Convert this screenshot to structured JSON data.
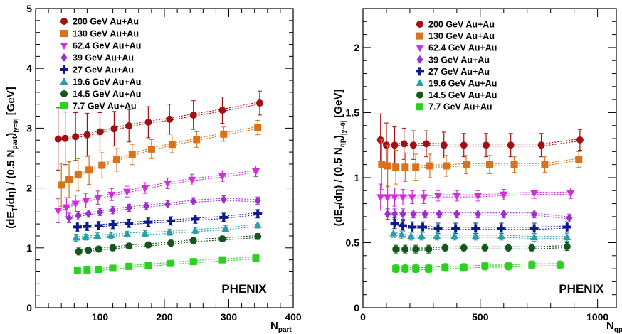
{
  "chart_data": [
    {
      "type": "scatter",
      "x_label": {
        "main": "N",
        "sub": "part"
      },
      "y_label": {
        "pre": "(dE",
        "s1": "T",
        "mid": "/dη) / (0.5 N",
        "s2": "part",
        "post": ")",
        "s3": "|y=0|",
        "unit": " [GeV]"
      },
      "x_ticks": [
        "100",
        "200",
        "300",
        "400"
      ],
      "y_ticks": [
        "0",
        "1",
        "2",
        "3",
        "4",
        "5"
      ],
      "xlim": [
        0,
        400
      ],
      "ylim": [
        0,
        5
      ],
      "watermark": "PHENIX",
      "legend_position": "top-left",
      "series": [
        {
          "name": "200 GeV Au+Au",
          "color": "#a30f12",
          "marker": "circle",
          "x": [
            35,
            46,
            62,
            80,
            100,
            122,
            145,
            175,
            208,
            245,
            290,
            348
          ],
          "y": [
            2.82,
            2.83,
            2.86,
            2.89,
            2.94,
            2.99,
            3.04,
            3.1,
            3.15,
            3.22,
            3.3,
            3.42
          ],
          "err": [
            0.52,
            0.44,
            0.4,
            0.36,
            0.32,
            0.29,
            0.27,
            0.26,
            0.25,
            0.24,
            0.22,
            0.2
          ]
        },
        {
          "name": "130 GeV Au+Au",
          "color": "#d97218",
          "marker": "square",
          "x": [
            40,
            52,
            66,
            83,
            103,
            126,
            150,
            180,
            212,
            250,
            292,
            345
          ],
          "y": [
            2.05,
            2.14,
            2.22,
            2.3,
            2.38,
            2.47,
            2.56,
            2.65,
            2.73,
            2.81,
            2.9,
            3.01
          ],
          "err": [
            0.36,
            0.3,
            0.27,
            0.24,
            0.21,
            0.19,
            0.17,
            0.16,
            0.14,
            0.13,
            0.12,
            0.12
          ]
        },
        {
          "name": "62.4 GeV Au+Au",
          "color": "#d02ed8",
          "marker": "triangle-down",
          "x": [
            35,
            48,
            62,
            78,
            97,
            118,
            142,
            170,
            205,
            243,
            290,
            342
          ],
          "y": [
            1.62,
            1.68,
            1.74,
            1.79,
            1.84,
            1.89,
            1.94,
            2.0,
            2.08,
            2.14,
            2.2,
            2.28
          ],
          "err": [
            0.2,
            0.16,
            0.14,
            0.12,
            0.11,
            0.1,
            0.09,
            0.09,
            0.09,
            0.09,
            0.09,
            0.09
          ]
        },
        {
          "name": "39 GeV Au+Au",
          "color": "#9b30c8",
          "marker": "diamond",
          "x": [
            52,
            66,
            82,
            100,
            120,
            145,
            172,
            205,
            245,
            292,
            345
          ],
          "y": [
            1.5,
            1.54,
            1.57,
            1.6,
            1.63,
            1.67,
            1.7,
            1.73,
            1.78,
            1.81,
            1.79
          ],
          "err": [
            0.08,
            0.07,
            0.06,
            0.06,
            0.06,
            0.06,
            0.06,
            0.06,
            0.06,
            0.06,
            0.06
          ]
        },
        {
          "name": "27 GeV Au+Au",
          "color": "#0c1a8a",
          "marker": "cross",
          "x": [
            65,
            80,
            98,
            120,
            145,
            175,
            210,
            248,
            292,
            345
          ],
          "y": [
            1.35,
            1.36,
            1.37,
            1.39,
            1.41,
            1.43,
            1.45,
            1.48,
            1.51,
            1.57
          ],
          "err": [
            0.08,
            0.07,
            0.07,
            0.07,
            0.07,
            0.07,
            0.07,
            0.07,
            0.07,
            0.07
          ]
        },
        {
          "name": "19.6 GeV Au+Au",
          "color": "#2a9da6",
          "marker": "triangle-up",
          "x": [
            63,
            78,
            96,
            117,
            142,
            170,
            208,
            248,
            295,
            345
          ],
          "y": [
            1.17,
            1.18,
            1.2,
            1.21,
            1.23,
            1.24,
            1.26,
            1.29,
            1.32,
            1.38
          ],
          "err": [
            0.06,
            0.05,
            0.05,
            0.05,
            0.05,
            0.05,
            0.05,
            0.05,
            0.05,
            0.05
          ]
        },
        {
          "name": "14.5 GeV Au+Au",
          "color": "#14561b",
          "marker": "circle",
          "x": [
            67,
            82,
            98,
            120,
            145,
            175,
            210,
            245,
            290,
            345
          ],
          "y": [
            0.94,
            0.96,
            0.98,
            1.0,
            1.03,
            1.05,
            1.08,
            1.12,
            1.15,
            1.19
          ],
          "err": [
            0.06,
            0.05,
            0.05,
            0.05,
            0.05,
            0.05,
            0.05,
            0.05,
            0.05,
            0.05
          ]
        },
        {
          "name": "7.7 GeV Au+Au",
          "color": "#2ad21d",
          "marker": "square",
          "x": [
            65,
            80,
            98,
            120,
            145,
            175,
            210,
            245,
            290,
            342
          ],
          "y": [
            0.62,
            0.63,
            0.64,
            0.66,
            0.69,
            0.71,
            0.74,
            0.77,
            0.8,
            0.83
          ],
          "err": [
            0.05,
            0.04,
            0.04,
            0.04,
            0.04,
            0.04,
            0.04,
            0.04,
            0.04,
            0.04
          ]
        }
      ]
    },
    {
      "type": "scatter",
      "x_label": {
        "main": "N",
        "sub": "qp"
      },
      "y_label": {
        "pre": "(dE",
        "s1": "T",
        "mid": "/dη) / (0.5 N",
        "s2": "qp",
        "post": ")",
        "s3": "|y=0|",
        "unit": " [GeV]"
      },
      "x_ticks": [
        "0",
        "500",
        "1000"
      ],
      "y_ticks": [
        "0",
        "0.5",
        "1",
        "1.5",
        "2"
      ],
      "xlim": [
        0,
        1080
      ],
      "ylim": [
        0,
        2.3
      ],
      "watermark": "PHENIX",
      "legend_position": "top-left",
      "series": [
        {
          "name": "200 GeV Au+Au",
          "color": "#a30f12",
          "marker": "circle",
          "x": [
            75,
            100,
            135,
            175,
            215,
            270,
            345,
            430,
            525,
            630,
            760,
            925
          ],
          "y": [
            1.29,
            1.25,
            1.25,
            1.26,
            1.25,
            1.26,
            1.25,
            1.25,
            1.25,
            1.25,
            1.25,
            1.29
          ],
          "err": [
            0.2,
            0.17,
            0.14,
            0.12,
            0.11,
            0.1,
            0.1,
            0.09,
            0.09,
            0.09,
            0.09,
            0.08
          ]
        },
        {
          "name": "130 GeV Au+Au",
          "color": "#d97218",
          "marker": "square",
          "x": [
            80,
            105,
            140,
            180,
            225,
            285,
            355,
            440,
            540,
            645,
            775,
            920
          ],
          "y": [
            1.1,
            1.09,
            1.08,
            1.08,
            1.08,
            1.09,
            1.09,
            1.1,
            1.1,
            1.1,
            1.1,
            1.14
          ],
          "err": [
            0.19,
            0.16,
            0.13,
            0.11,
            0.1,
            0.09,
            0.08,
            0.07,
            0.07,
            0.06,
            0.06,
            0.06
          ]
        },
        {
          "name": "62.4 GeV Au+Au",
          "color": "#d02ed8",
          "marker": "triangle-down",
          "x": [
            75,
            105,
            135,
            170,
            210,
            260,
            320,
            400,
            490,
            600,
            730,
            885
          ],
          "y": [
            0.85,
            0.85,
            0.85,
            0.85,
            0.85,
            0.85,
            0.86,
            0.86,
            0.86,
            0.87,
            0.88,
            0.88
          ],
          "err": [
            0.1,
            0.09,
            0.07,
            0.06,
            0.05,
            0.05,
            0.04,
            0.04,
            0.04,
            0.04,
            0.04,
            0.04
          ]
        },
        {
          "name": "39 GeV Au+Au",
          "color": "#9b30c8",
          "marker": "diamond",
          "x": [
            105,
            135,
            170,
            215,
            265,
            325,
            400,
            490,
            600,
            730,
            880
          ],
          "y": [
            0.72,
            0.72,
            0.72,
            0.72,
            0.72,
            0.72,
            0.72,
            0.72,
            0.72,
            0.72,
            0.69
          ],
          "err": [
            0.04,
            0.04,
            0.04,
            0.03,
            0.03,
            0.03,
            0.03,
            0.03,
            0.03,
            0.03,
            0.03
          ]
        },
        {
          "name": "27 GeV Au+Au",
          "color": "#0c1a8a",
          "marker": "cross",
          "x": [
            135,
            170,
            210,
            255,
            320,
            395,
            480,
            590,
            730,
            870
          ],
          "y": [
            0.65,
            0.63,
            0.62,
            0.62,
            0.61,
            0.61,
            0.61,
            0.61,
            0.61,
            0.62
          ],
          "err": [
            0.04,
            0.04,
            0.04,
            0.04,
            0.04,
            0.04,
            0.04,
            0.04,
            0.04,
            0.04
          ]
        },
        {
          "name": "19.6 GeV Au+Au",
          "color": "#2a9da6",
          "marker": "triangle-up",
          "x": [
            130,
            165,
            205,
            250,
            315,
            390,
            480,
            590,
            730,
            870
          ],
          "y": [
            0.57,
            0.56,
            0.55,
            0.55,
            0.55,
            0.55,
            0.55,
            0.55,
            0.54,
            0.54
          ],
          "err": [
            0.03,
            0.03,
            0.03,
            0.03,
            0.03,
            0.03,
            0.03,
            0.03,
            0.03,
            0.03
          ]
        },
        {
          "name": "14.5 GeV Au+Au",
          "color": "#14561b",
          "marker": "circle",
          "x": [
            140,
            180,
            225,
            280,
            350,
            430,
            520,
            620,
            720,
            870
          ],
          "y": [
            0.45,
            0.45,
            0.45,
            0.45,
            0.46,
            0.46,
            0.46,
            0.46,
            0.46,
            0.47
          ],
          "err": [
            0.03,
            0.03,
            0.03,
            0.03,
            0.03,
            0.03,
            0.03,
            0.03,
            0.03,
            0.03
          ]
        },
        {
          "name": "7.7 GeV Au+Au",
          "color": "#2ad21d",
          "marker": "square",
          "x": [
            140,
            180,
            225,
            280,
            350,
            430,
            520,
            620,
            720,
            840
          ],
          "y": [
            0.3,
            0.3,
            0.3,
            0.3,
            0.31,
            0.31,
            0.32,
            0.32,
            0.33,
            0.33
          ],
          "err": [
            0.03,
            0.03,
            0.03,
            0.03,
            0.03,
            0.03,
            0.03,
            0.03,
            0.03,
            0.03
          ]
        }
      ]
    }
  ]
}
